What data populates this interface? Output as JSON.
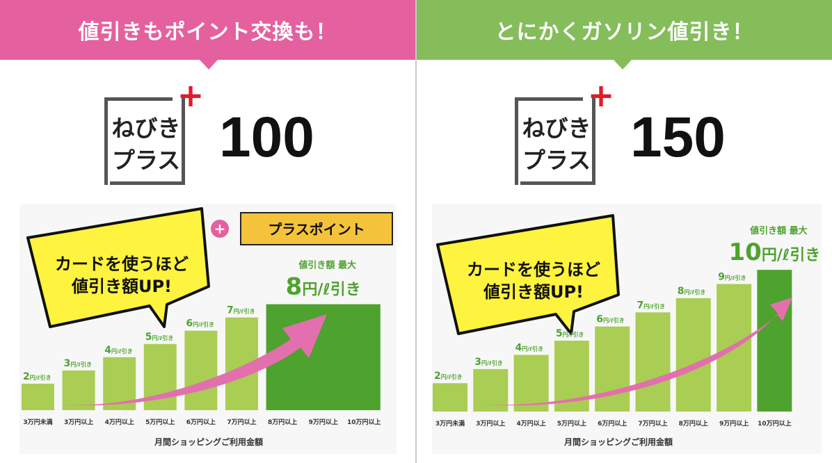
{
  "colors": {
    "pink": "#e5609e",
    "green_banner": "#84bd5a",
    "bar_light": "#aacd53",
    "bar_dark": "#4ea22e",
    "label_green": "#4ea22e",
    "yellow": "#fef33f",
    "gold": "#f5c33b",
    "arrow": "#e36fae",
    "plus_red": "#e11c2a"
  },
  "left": {
    "banner": "値引きもポイント交換も！",
    "logo": {
      "line1": "ねびき",
      "line2": "プラス",
      "plus": "+"
    },
    "plan_number": "100",
    "bubble": {
      "line1": "カードを使うほど",
      "line2": "値引き額UP!"
    },
    "plus_circle": "+",
    "plus_point": "プラスポイント",
    "max": {
      "label": "値引き額  最大",
      "value": "8",
      "unit": "円/ℓ引き"
    },
    "x_title": "月間ショッピングご利用金額",
    "chart_data": {
      "type": "bar",
      "xlabel": "月間ショッピングご利用金額",
      "categories": [
        "3万円未満",
        "3万円以上",
        "4万円以上",
        "5万円以上",
        "6万円以上",
        "7万円以上",
        "8万円以上",
        "9万円以上",
        "10万円以上"
      ],
      "values": [
        2,
        3,
        4,
        5,
        6,
        7,
        8,
        8,
        8
      ],
      "bar_labels": [
        "2",
        "3",
        "4",
        "5",
        "6",
        "7",
        "",
        "",
        ""
      ],
      "bar_unit": "円/ℓ引き",
      "max_from_index": 6,
      "ylim": [
        0,
        8.4
      ]
    }
  },
  "right": {
    "banner": "とにかくガソリン値引き！",
    "logo": {
      "line1": "ねびき",
      "line2": "プラス",
      "plus": "+"
    },
    "plan_number": "150",
    "bubble": {
      "line1": "カードを使うほど",
      "line2": "値引き額UP!"
    },
    "max": {
      "label": "値引き額  最大",
      "value": "10",
      "unit": "円/ℓ引き"
    },
    "x_title": "月間ショッピングご利用金額",
    "chart_data": {
      "type": "bar",
      "xlabel": "月間ショッピングご利用金額",
      "categories": [
        "3万円未満",
        "3万円以上",
        "4万円以上",
        "5万円以上",
        "6万円以上",
        "7万円以上",
        "8万円以上",
        "9万円以上",
        "10万円以上"
      ],
      "values": [
        2,
        3,
        4,
        5,
        6,
        7,
        8,
        9,
        10
      ],
      "bar_labels": [
        "2",
        "3",
        "4",
        "5",
        "6",
        "7",
        "8",
        "9",
        ""
      ],
      "bar_unit": "円/ℓ引き",
      "max_from_index": 8,
      "ylim": [
        0,
        10.4
      ]
    }
  }
}
